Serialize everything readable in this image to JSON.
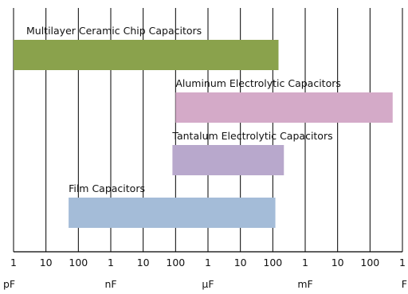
{
  "chart_data": {
    "type": "bar",
    "orientation": "horizontal",
    "scale": "log",
    "unit": "F",
    "grid": true,
    "legend": "none",
    "xlim": [
      1e-12,
      1
    ],
    "ticks": [
      {
        "value": 1e-12,
        "label": "1",
        "unit": "pF"
      },
      {
        "value": 1e-11,
        "label": "10",
        "unit": ""
      },
      {
        "value": 1e-10,
        "label": "100",
        "unit": ""
      },
      {
        "value": 1e-09,
        "label": "1",
        "unit": "nF"
      },
      {
        "value": 1e-08,
        "label": "10",
        "unit": ""
      },
      {
        "value": 1e-07,
        "label": "100",
        "unit": ""
      },
      {
        "value": 1e-06,
        "label": "1",
        "unit": "μF"
      },
      {
        "value": 1e-05,
        "label": "10",
        "unit": ""
      },
      {
        "value": 0.0001,
        "label": "100",
        "unit": ""
      },
      {
        "value": 0.001,
        "label": "1",
        "unit": "mF"
      },
      {
        "value": 0.01,
        "label": "10",
        "unit": ""
      },
      {
        "value": 0.1,
        "label": "100",
        "unit": ""
      },
      {
        "value": 1,
        "label": "1",
        "unit": "F"
      }
    ],
    "series": [
      {
        "name": "Multilayer Ceramic Chip Capacitors",
        "min": 1e-12,
        "max": 0.00015,
        "color": "#8aa24c"
      },
      {
        "name": "Aluminum Electrolytic Capacitors",
        "min": 1e-07,
        "max": 0.5,
        "color": "#d4aac8"
      },
      {
        "name": "Tantalum Electrolytic Capacitors",
        "min": 8e-08,
        "max": 0.00022,
        "color": "#b8a8cc"
      },
      {
        "name": "Film Capacitors",
        "min": 5e-11,
        "max": 0.00012,
        "color": "#a4bcd8"
      }
    ]
  }
}
